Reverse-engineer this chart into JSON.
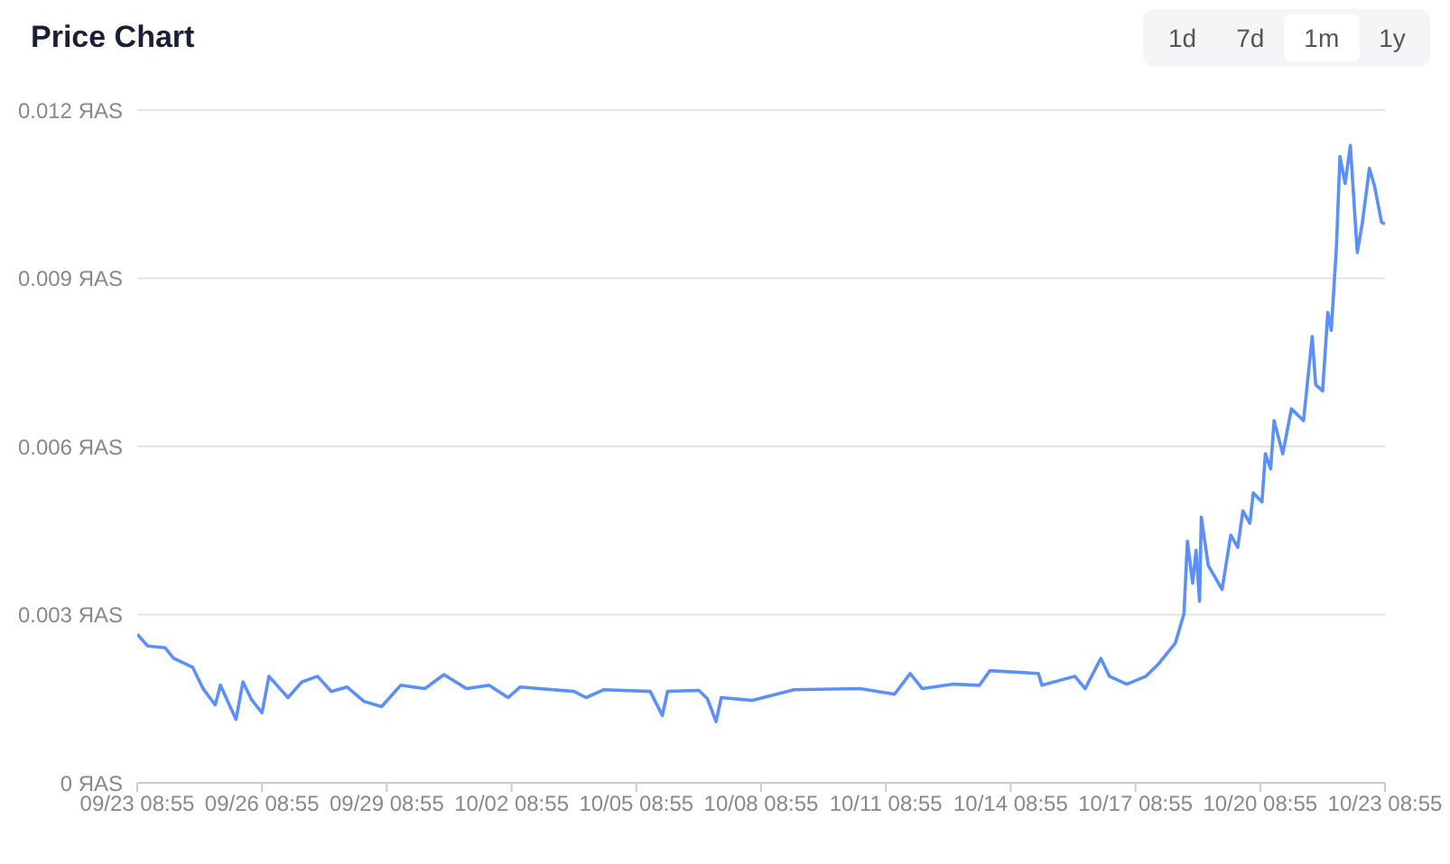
{
  "chart_data": {
    "type": "line",
    "title": "Price Chart",
    "annotations": [
      "1d",
      "7d",
      "1m",
      "1y"
    ],
    "x": [
      "--09-23T08:55",
      "--09-23T14:55",
      "--09-24T00:55",
      "--09-24T05:55",
      "--09-24T16:55",
      "--09-24T22:55",
      "--09-25T05:55",
      "--09-25T08:55",
      "--09-25T17:55",
      "--09-25T21:55",
      "--09-26T02:55",
      "--09-26T08:55",
      "--09-26T12:55",
      "--09-26T23:55",
      "--09-27T07:55",
      "--09-27T16:55",
      "--09-28T00:55",
      "--09-28T09:55",
      "--09-28T19:55",
      "--09-29T05:55",
      "--09-29T16:55",
      "--09-30T06:55",
      "--09-30T17:55",
      "--10-01T06:55",
      "--10-01T19:55",
      "--10-02T06:55",
      "--10-02T13:55",
      "--10-03T20:55",
      "--10-04T03:55",
      "--10-04T13:55",
      "--10-05T16:55",
      "--10-05T23:55",
      "--10-06T02:55",
      "--10-06T20:55",
      "--10-07T01:55",
      "--10-07T06:55",
      "--10-07T09:55",
      "--10-08T03:55",
      "--10-09T03:55",
      "--10-10T17:55",
      "--10-11T13:55",
      "--10-11T22:55",
      "--10-12T05:55",
      "--10-12T23:55",
      "--10-13T14:55",
      "--10-13T20:55",
      "--10-15T00:55",
      "--10-15T02:55",
      "--10-15T21:55",
      "--10-16T03:55",
      "--10-16T12:55",
      "--10-16T17:55",
      "--10-17T03:55",
      "--10-17T14:55",
      "--10-17T21:55",
      "--10-18T07:55",
      "--10-18T12:55",
      "--10-18T14:55",
      "--10-18T17:55",
      "--10-18T19:55",
      "--10-18T21:55",
      "--10-18T22:55",
      "--10-19T02:55",
      "--10-19T10:55",
      "--10-19T15:55",
      "--10-19T19:55",
      "--10-19T22:55",
      "--10-20T02:55",
      "--10-20T04:55",
      "--10-20T09:55",
      "--10-20T11:55",
      "--10-20T14:55",
      "--10-20T16:55",
      "--10-20T21:55",
      "--10-21T02:55",
      "--10-21T09:55",
      "--10-21T14:55",
      "--10-21T16:55",
      "--10-21T20:55",
      "--10-21T23:55",
      "--10-22T01:55",
      "--10-22T04:55",
      "--10-22T06:55",
      "--10-22T09:55",
      "--10-22T12:55",
      "--10-22T16:55",
      "--10-22T19:55",
      "--10-22T23:55",
      "--10-23T02:55",
      "--10-23T06:55",
      "--10-23T08:55"
    ],
    "series": [
      {
        "color": "#5b8ff9",
        "values": [
          0.00265,
          0.00244,
          0.00241,
          0.00222,
          0.00206,
          0.00168,
          0.00139,
          0.00174,
          0.00113,
          0.0018,
          0.00148,
          0.00125,
          0.0019,
          0.00152,
          0.0018,
          0.0019,
          0.00163,
          0.00171,
          0.00145,
          0.00136,
          0.00174,
          0.00168,
          0.00193,
          0.00168,
          0.00174,
          0.00152,
          0.00171,
          0.00163,
          0.00152,
          0.00166,
          0.00163,
          0.0012,
          0.00163,
          0.00165,
          0.0015,
          0.00109,
          0.00152,
          0.00147,
          0.00166,
          0.00168,
          0.00158,
          0.00195,
          0.00168,
          0.00176,
          0.00174,
          0.002,
          0.00195,
          0.00174,
          0.0019,
          0.00168,
          0.00222,
          0.0019,
          0.00176,
          0.0019,
          0.00211,
          0.00249,
          0.00302,
          0.00431,
          0.00356,
          0.00415,
          0.00324,
          0.00474,
          0.00388,
          0.00345,
          0.00442,
          0.0042,
          0.00485,
          0.00463,
          0.00517,
          0.00501,
          0.00587,
          0.0056,
          0.00646,
          0.00587,
          0.00667,
          0.00646,
          0.00796,
          0.0071,
          0.00699,
          0.00839,
          0.00807,
          0.00957,
          0.01117,
          0.01069,
          0.01137,
          0.00946,
          0.01,
          0.01096,
          0.01064,
          0.01,
          0.00997
        ]
      }
    ],
    "xlim": [
      "--09-23T08:55",
      "--10-23T08:55"
    ],
    "xticks": [
      {
        "value": "--09-23T08:55",
        "label": "09/23 08:55"
      },
      {
        "value": "--09-26T08:55",
        "label": "09/26 08:55"
      },
      {
        "value": "--09-29T08:55",
        "label": "09/29 08:55"
      },
      {
        "value": "--10-02T08:55",
        "label": "10/02 08:55"
      },
      {
        "value": "--10-05T08:55",
        "label": "10/05 08:55"
      },
      {
        "value": "--10-08T08:55",
        "label": "10/08 08:55"
      },
      {
        "value": "--10-11T08:55",
        "label": "10/11 08:55"
      },
      {
        "value": "--10-14T08:55",
        "label": "10/14 08:55"
      },
      {
        "value": "--10-17T08:55",
        "label": "10/17 08:55"
      },
      {
        "value": "--10-20T08:55",
        "label": "10/20 08:55"
      },
      {
        "value": "--10-23T08:55",
        "label": "10/23 08:55"
      }
    ],
    "ylim": [
      0,
      0.012
    ],
    "yticks": [
      {
        "value": 0,
        "label": "0 ЯAS"
      },
      {
        "value": 0.003,
        "label": "0.003 ЯAS"
      },
      {
        "value": 0.006,
        "label": "0.006 ЯAS"
      },
      {
        "value": 0.009,
        "label": "0.009 ЯAS"
      },
      {
        "value": 0.012,
        "label": "0.012 ЯAS"
      }
    ],
    "grid": "y",
    "marker": "none",
    "line_style": "solid",
    "legend": false
  }
}
